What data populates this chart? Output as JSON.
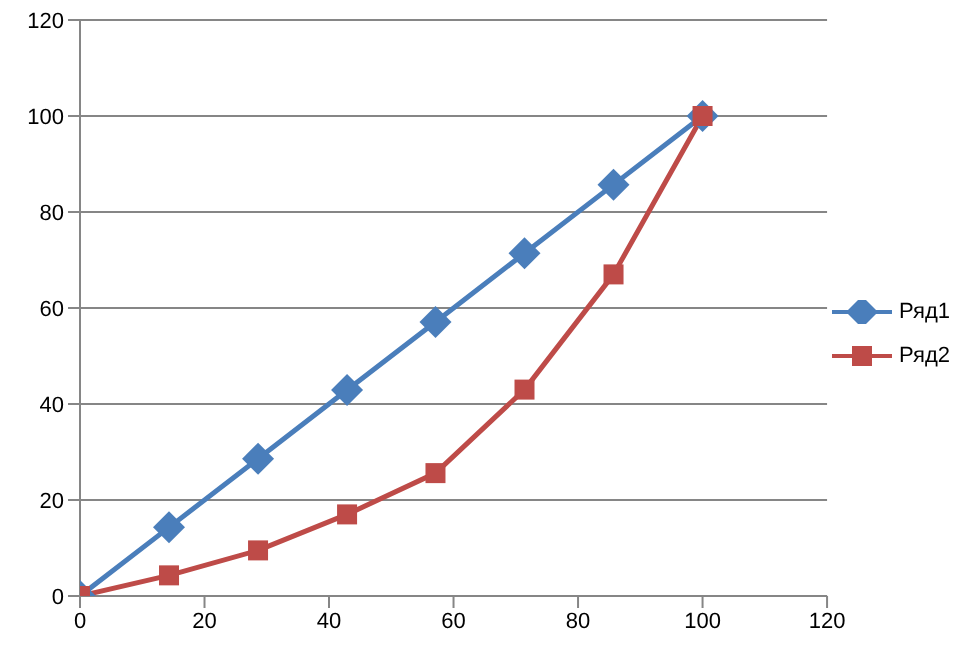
{
  "chart_data": {
    "type": "line",
    "x": [
      0,
      14.3,
      28.6,
      42.9,
      57.1,
      71.4,
      85.7,
      100
    ],
    "series": [
      {
        "name": "Ряд1",
        "color": "#4a7ebb",
        "marker": "diamond",
        "values": [
          0,
          14.3,
          28.6,
          42.9,
          57.1,
          71.4,
          85.7,
          100
        ]
      },
      {
        "name": "Ряд2",
        "color": "#be4b48",
        "marker": "square",
        "values": [
          0,
          4.3,
          9.5,
          17,
          25.6,
          43,
          67,
          100
        ]
      }
    ],
    "xlim": [
      0,
      120
    ],
    "xticks": [
      0,
      20,
      40,
      60,
      80,
      100,
      120
    ],
    "ylim": [
      0,
      120
    ],
    "yticks": [
      0,
      20,
      40,
      60,
      80,
      100,
      120
    ],
    "grid": "y",
    "legend": "right",
    "line_style": "solid"
  }
}
